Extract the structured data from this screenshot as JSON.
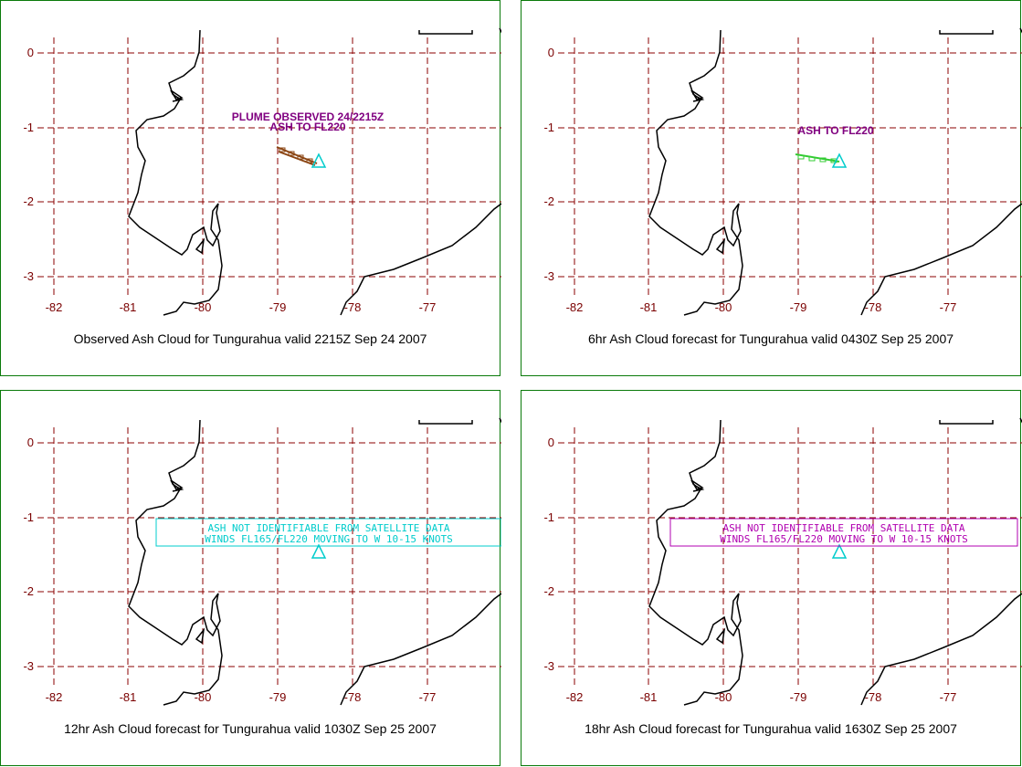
{
  "x_ticks": [
    "-82",
    "-81",
    "-80",
    "-79",
    "-78",
    "-77"
  ],
  "y_ticks": [
    "0",
    "-1",
    "-2",
    "-3"
  ],
  "colors": {
    "border": "#0a7a0a",
    "grid": "#8b0000",
    "tick": "#7a0000",
    "volcano": "#00cccc",
    "plume_observed": "#8b4513",
    "plume_6hr": "#33cc33",
    "anno_purple": "#800080",
    "anno_cyan": "#00cccc",
    "anno_magenta": "#b000b0"
  },
  "panels": [
    {
      "caption": "Observed Ash Cloud for Tungurahua valid 2215Z Sep 24 2007",
      "annotation_lines": [
        "PLUME OBSERVED 24/2215Z",
        "ASH TO FL220"
      ],
      "annotation_style": "plain",
      "annotation_color": "#800080",
      "plume_color": "#8b4513",
      "has_plume": true
    },
    {
      "caption": "6hr Ash Cloud forecast for Tungurahua valid 0430Z Sep 25 2007",
      "annotation_lines": [
        "ASH TO FL220"
      ],
      "annotation_style": "plain",
      "annotation_color": "#800080",
      "plume_color": "#33cc33",
      "has_plume": true
    },
    {
      "caption": "12hr Ash Cloud forecast for Tungurahua valid 1030Z Sep 25 2007",
      "annotation_lines": [
        "ASH NOT IDENTIFIABLE FROM SATELLITE DATA",
        "WINDS FL165/FL220 MOVING TO W 10-15 KNOTS"
      ],
      "annotation_style": "boxed",
      "annotation_color": "#00cccc",
      "has_plume": false
    },
    {
      "caption": "18hr Ash Cloud forecast for Tungurahua valid 1630Z Sep 25 2007",
      "annotation_lines": [
        "ASH NOT IDENTIFIABLE FROM SATELLITE DATA",
        "WINDS FL165/FL220 MOVING TO W 10-15 KNOTS"
      ],
      "annotation_style": "boxed",
      "annotation_color": "#b000b0",
      "has_plume": false
    }
  ]
}
